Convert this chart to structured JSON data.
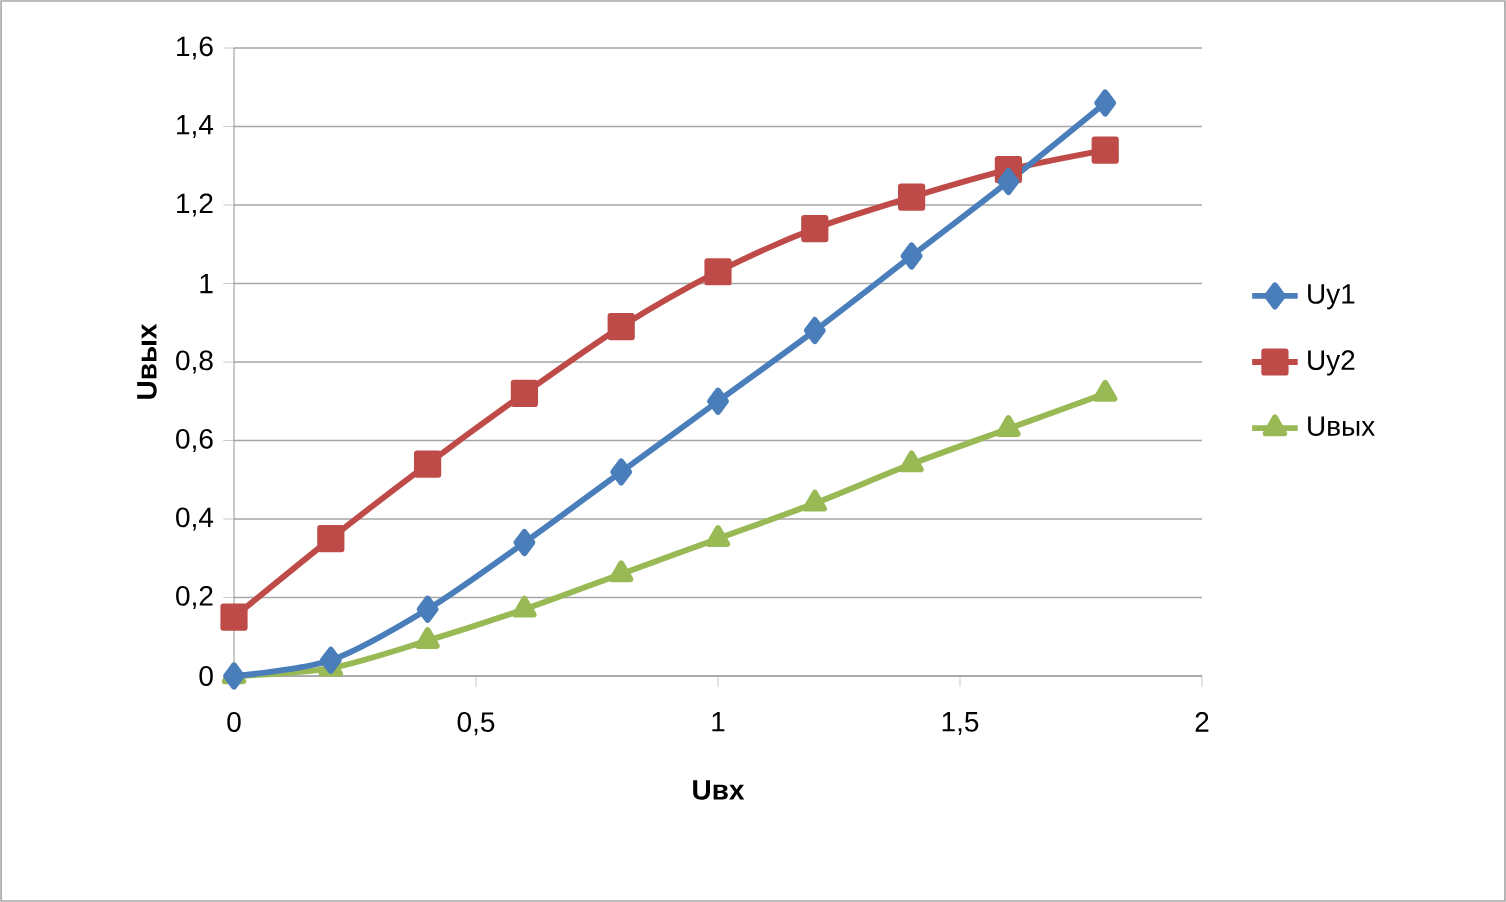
{
  "chart_data": {
    "type": "line",
    "xlabel": "Uвх",
    "ylabel": "Uвых",
    "x": [
      0,
      0.2,
      0.4,
      0.6,
      0.8,
      1.0,
      1.2,
      1.4,
      1.6,
      1.8
    ],
    "series": [
      {
        "name": "Uy1",
        "color": "#4a7ebb",
        "marker": "diamond",
        "values": [
          0,
          0.04,
          0.17,
          0.34,
          0.52,
          0.7,
          0.88,
          1.07,
          1.26,
          1.46
        ]
      },
      {
        "name": "Uy2",
        "color": "#be4b48",
        "marker": "square",
        "values": [
          0.15,
          0.35,
          0.54,
          0.72,
          0.89,
          1.03,
          1.14,
          1.22,
          1.29,
          1.34
        ]
      },
      {
        "name": "Uвых",
        "color": "#98b954",
        "marker": "triangle",
        "values": [
          0,
          0.02,
          0.09,
          0.17,
          0.26,
          0.35,
          0.44,
          0.54,
          0.63,
          0.72
        ]
      }
    ],
    "xlim": [
      0,
      2
    ],
    "xticks": [
      0,
      {
        "value": 0.5,
        "label": "0,5"
      },
      1,
      {
        "value": 1.5,
        "label": "1,5"
      },
      2
    ],
    "ylim": [
      0,
      1.6
    ],
    "yticks": [
      0,
      {
        "value": 0.2,
        "label": "0,2"
      },
      {
        "value": 0.4,
        "label": "0,4"
      },
      {
        "value": 0.6,
        "label": "0,6"
      },
      {
        "value": 0.8,
        "label": "0,8"
      },
      1,
      {
        "value": 1.2,
        "label": "1,2"
      },
      {
        "value": 1.4,
        "label": "1,4"
      },
      {
        "value": 1.6,
        "label": "1,6"
      }
    ],
    "grid": "y",
    "legend": "right",
    "line_style": "solid"
  }
}
